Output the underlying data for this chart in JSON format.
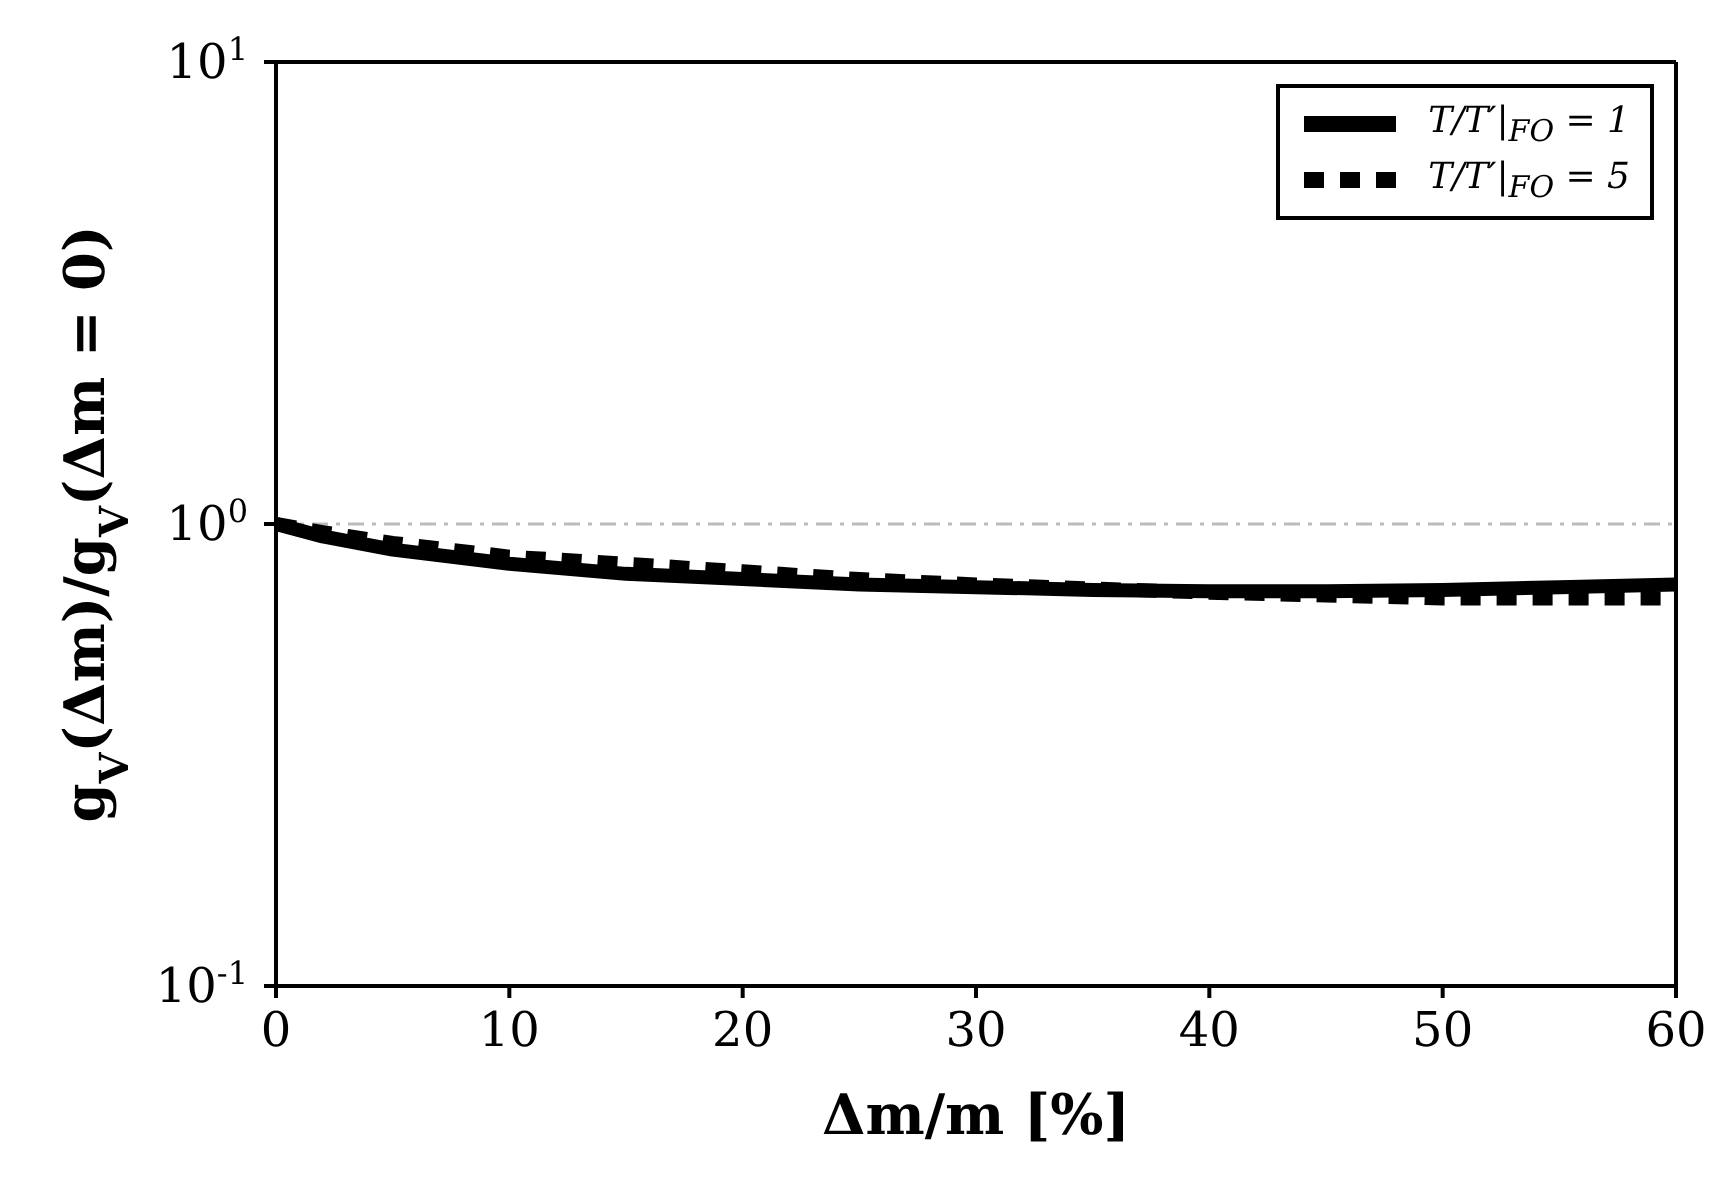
{
  "chart_data": {
    "type": "line",
    "xlabel": "Δm/m [%]",
    "ylabel": "g$_{V}$(Δm)/g$_{V}$(Δm = 0)",
    "x": [
      0,
      2,
      5,
      10,
      15,
      20,
      25,
      30,
      35,
      40,
      45,
      50,
      55,
      60
    ],
    "series": [
      {
        "name": "T/T′|$_{FO}$ = 1",
        "color": "#000000",
        "line_style": "solid",
        "values": [
          1.0,
          0.94,
          0.88,
          0.82,
          0.78,
          0.76,
          0.74,
          0.73,
          0.72,
          0.715,
          0.715,
          0.72,
          0.73,
          0.74
        ]
      },
      {
        "name": "T/T′|$_{FO}$ = 5",
        "color": "#000000",
        "line_style": "dashed",
        "values": [
          1.0,
          0.96,
          0.91,
          0.85,
          0.82,
          0.79,
          0.76,
          0.74,
          0.725,
          0.71,
          0.7,
          0.69,
          0.69,
          0.69
        ]
      }
    ],
    "xlim": [
      0,
      60
    ],
    "xticks": [
      0,
      10,
      20,
      30,
      40,
      50,
      60
    ],
    "ylim": [
      0.1,
      10
    ],
    "yticks": [
      {
        "value": 0.1,
        "label": "10$^{-1}$"
      },
      {
        "value": 1,
        "label": "10$^{0}$"
      },
      {
        "value": 10,
        "label": "10$^{1}$"
      }
    ],
    "log": "y",
    "grid": false,
    "legend": "top right",
    "marker": "none",
    "ref_lines": [
      {
        "axis": "y",
        "value": 1,
        "color": "#bbbbbb",
        "line_style": "dashdot"
      }
    ]
  }
}
